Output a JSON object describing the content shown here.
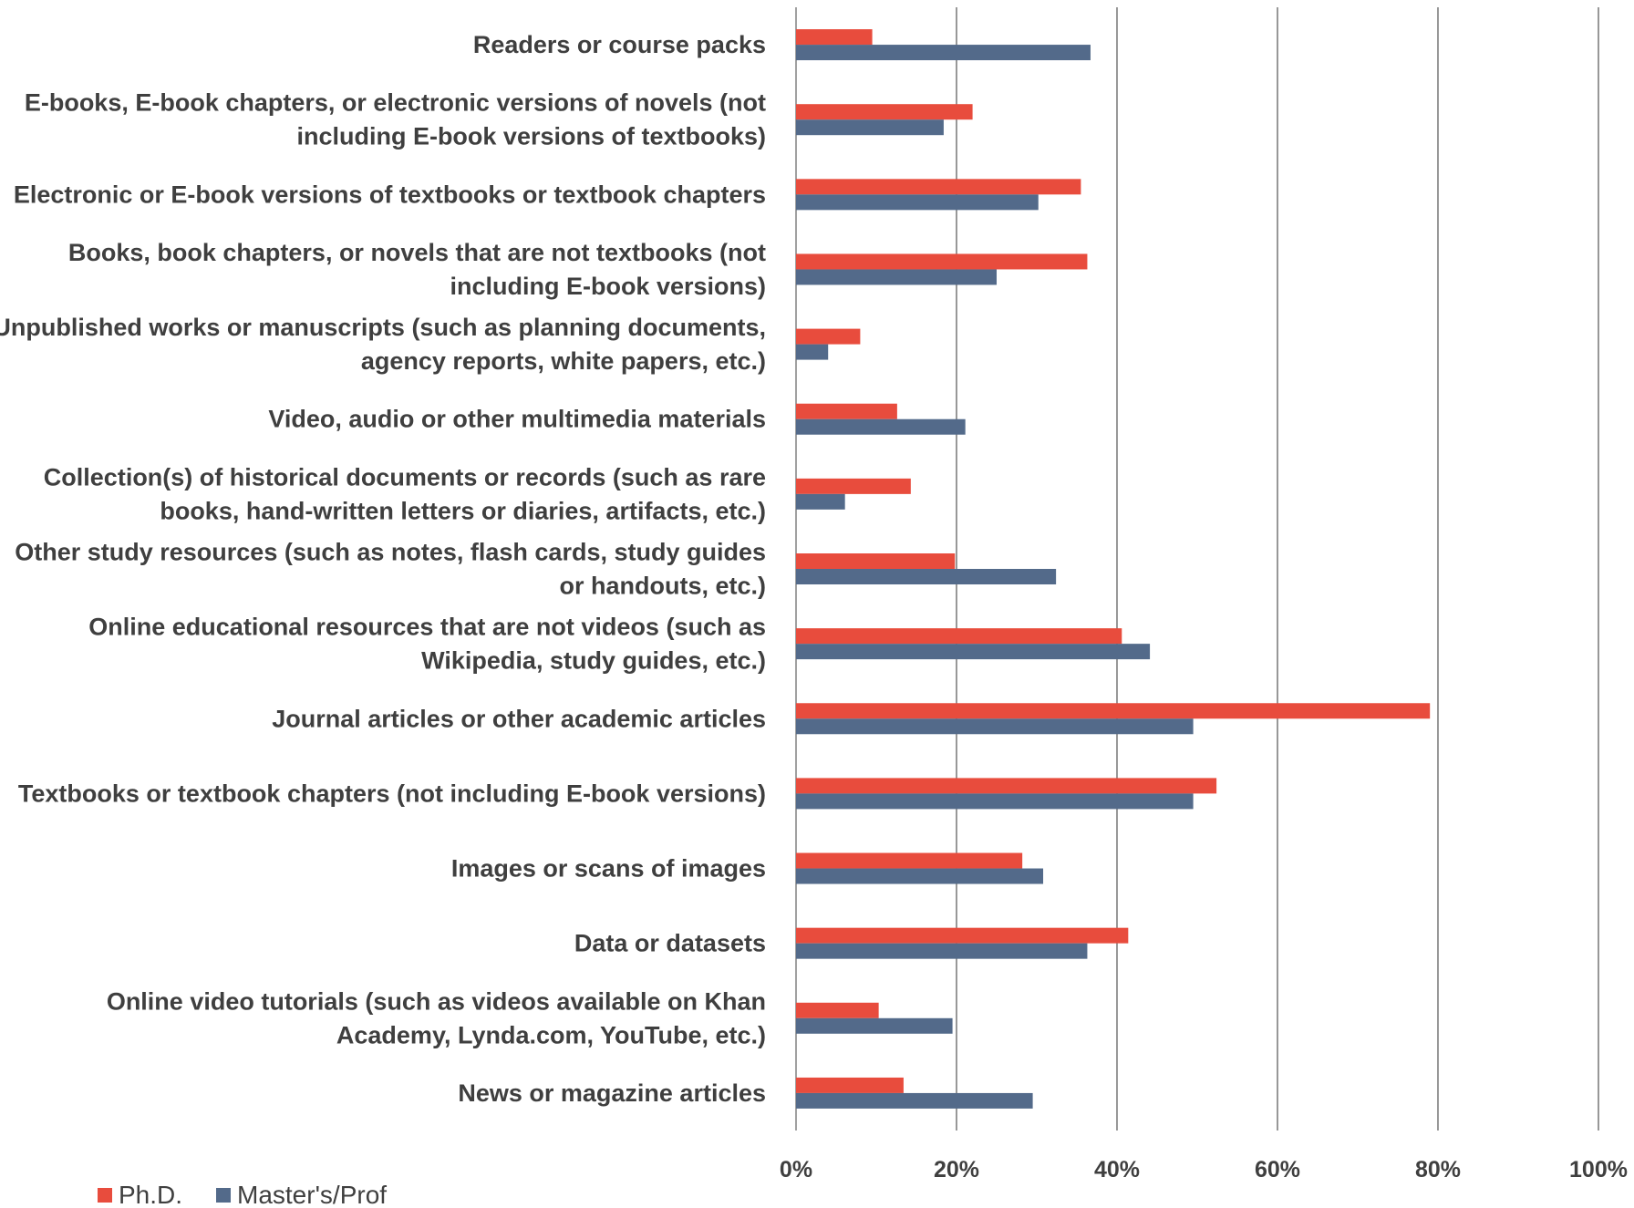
{
  "chart_data": {
    "type": "bar",
    "orientation": "horizontal",
    "categories": [
      [
        "Readers or course packs"
      ],
      [
        "E-books, E-book chapters, or electronic versions of novels (not",
        "including E-book versions of textbooks)"
      ],
      [
        "Electronic or E-book versions of textbooks or textbook chapters"
      ],
      [
        "Books, book chapters, or novels that are not textbooks (not",
        "including E-book versions)"
      ],
      [
        "Unpublished works or manuscripts (such as planning documents,",
        "agency reports, white papers, etc.)"
      ],
      [
        "Video, audio or other multimedia materials"
      ],
      [
        "Collection(s) of historical documents or records (such as rare",
        "books, hand-written letters or diaries, artifacts, etc.)"
      ],
      [
        "Other study resources (such as notes, flash cards, study guides",
        "or handouts, etc.)"
      ],
      [
        "Online educational resources that are not videos (such as",
        "Wikipedia, study guides, etc.)"
      ],
      [
        "Journal articles or other academic articles"
      ],
      [
        "Textbooks or textbook chapters (not including E-book versions)"
      ],
      [
        "Images or scans of images"
      ],
      [
        "Data or datasets"
      ],
      [
        "Online video tutorials (such as videos available on Khan",
        "Academy, Lynda.com, YouTube, etc.)"
      ],
      [
        "News or magazine articles"
      ]
    ],
    "series": [
      {
        "name": "Ph.D.",
        "color": "#e84c3d",
        "values": [
          9.5,
          22,
          35.5,
          36.3,
          8,
          12.6,
          14.3,
          19.8,
          40.6,
          79,
          52.4,
          28.2,
          41.4,
          10.3,
          13.4
        ]
      },
      {
        "name": "Master's/Prof",
        "color": "#536a8a",
        "values": [
          36.7,
          18.4,
          30.2,
          25,
          4,
          21.1,
          6.1,
          32.4,
          44.1,
          49.5,
          49.5,
          30.8,
          36.3,
          19.5,
          29.5
        ]
      }
    ],
    "xlim": [
      0,
      100
    ],
    "xticks": [
      0,
      20,
      40,
      60,
      80,
      100
    ],
    "xtick_labels": [
      "0%",
      "20%",
      "40%",
      "60%",
      "80%",
      "100%"
    ],
    "grid": "vertical",
    "legend_position": "bottom-left",
    "title": "",
    "xlabel": "",
    "ylabel": ""
  }
}
